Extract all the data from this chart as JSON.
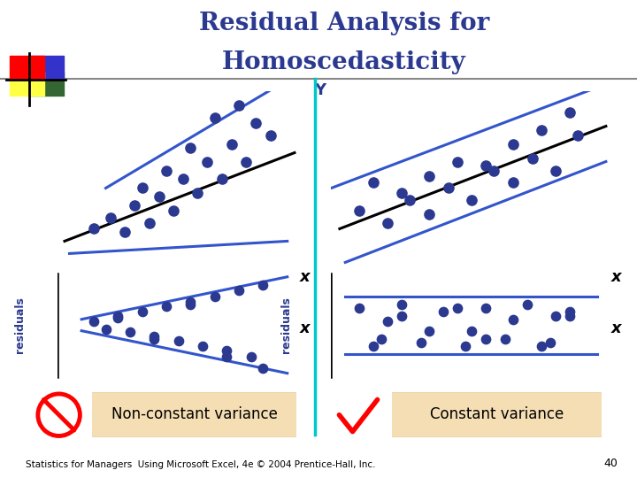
{
  "title_line1": "Residual Analysis for",
  "title_line2": "Homoscedasticity",
  "title_color": "#2B3990",
  "title_fontsize": 20,
  "background_color": "#FFFFFF",
  "dot_color": "#2B3990",
  "line_color_blue": "#3355CC",
  "line_color_black": "#000000",
  "label_color": "#2B3990",
  "footer_text": "Statistics for Managers  Using Microsoft Excel, 4e © 2004 Prentice-Hall, Inc.",
  "footer_page": "40",
  "non_constant_label": "Non-constant variance",
  "constant_label": "Constant variance",
  "residuals_label": "residuals",
  "box_color": "#F5DEB3",
  "divider_color": "#00C8C8",
  "logo_red": "#FF0000",
  "logo_blue": "#3333CC",
  "logo_green": "#336633",
  "logo_yellow": "#FFFF44"
}
